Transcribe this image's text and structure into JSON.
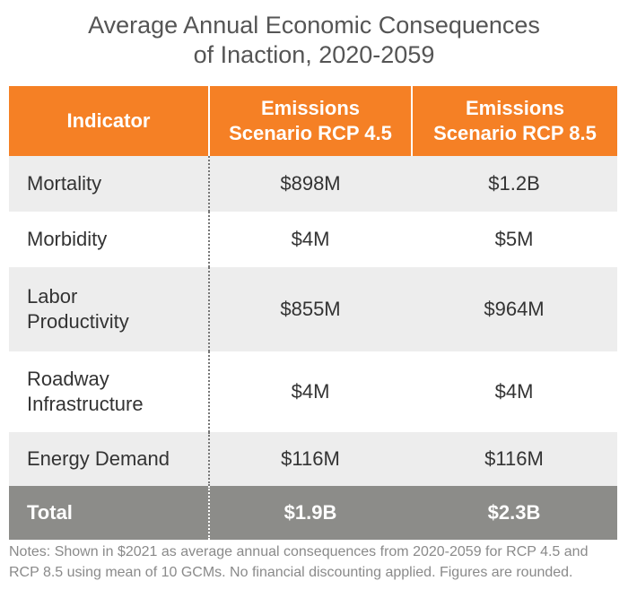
{
  "colors": {
    "header_bg": "#F58025",
    "total_bg": "#8C8C89",
    "shaded_row_bg": "#EDEDED"
  },
  "chart_data": {
    "type": "table",
    "title_lines": [
      "Average Annual Economic Consequences",
      "of Inaction, 2020-2059"
    ],
    "columns": [
      "Indicator",
      [
        "Emissions",
        "Scenario RCP 4.5"
      ],
      [
        "Emissions",
        "Scenario RCP 8.5"
      ]
    ],
    "rows": [
      {
        "indicator": [
          "Mortality"
        ],
        "rcp45": "$898M",
        "rcp85": "$1.2B"
      },
      {
        "indicator": [
          "Morbidity"
        ],
        "rcp45": "$4M",
        "rcp85": "$5M"
      },
      {
        "indicator": [
          "Labor",
          "Productivity"
        ],
        "rcp45": "$855M",
        "rcp85": "$964M"
      },
      {
        "indicator": [
          "Roadway",
          "Infrastructure"
        ],
        "rcp45": "$4M",
        "rcp85": "$4M"
      },
      {
        "indicator": [
          "Energy Demand"
        ],
        "rcp45": "$116M",
        "rcp85": "$116M"
      }
    ],
    "total": {
      "label": "Total",
      "rcp45": "$1.9B",
      "rcp85": "$2.3B"
    },
    "notes_lines": [
      "Notes: Shown in $2021 as average annual consequences from 2020-2059 for RCP 4.5 and",
      "RCP 8.5 using mean of 10 GCMs. No financial discounting applied. Figures are rounded."
    ]
  }
}
